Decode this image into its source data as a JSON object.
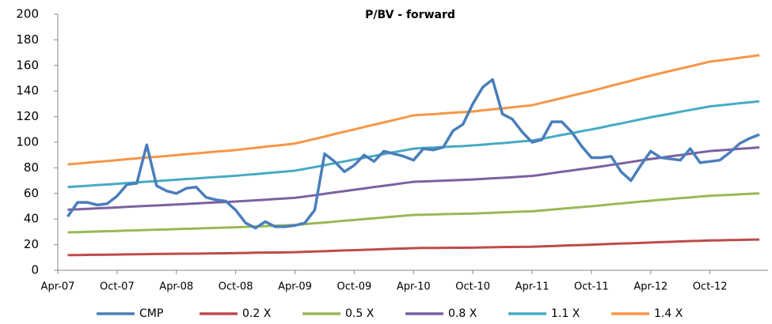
{
  "chart_data": {
    "type": "line",
    "title": "P/BV - forward",
    "categories": [
      "Apr-07",
      null,
      null,
      null,
      null,
      null,
      "Oct-07",
      null,
      null,
      null,
      null,
      null,
      "Apr-08",
      null,
      null,
      null,
      null,
      null,
      "Oct-08",
      null,
      null,
      null,
      null,
      null,
      "Apr-09",
      null,
      null,
      null,
      null,
      null,
      "Oct-09",
      null,
      null,
      null,
      null,
      null,
      "Apr-10",
      null,
      null,
      null,
      null,
      null,
      "Oct-10",
      null,
      null,
      null,
      null,
      null,
      "Apr-11",
      null,
      null,
      null,
      null,
      null,
      "Oct-11",
      null,
      null,
      null,
      null,
      null,
      "Apr-12",
      null,
      null,
      null,
      null,
      null,
      "Oct-12",
      null,
      null,
      null,
      null,
      null
    ],
    "ylim": [
      0,
      200
    ],
    "yticks": [
      0,
      20,
      40,
      60,
      80,
      100,
      120,
      140,
      160,
      180,
      200
    ],
    "grid": false,
    "legend": "bottom",
    "series": [
      {
        "name": "CMP",
        "color": "#4a7ebb",
        "values": [
          null,
          42,
          53,
          53,
          51,
          52,
          58,
          67,
          68,
          98,
          66,
          62,
          60,
          64,
          65,
          57,
          55,
          54,
          47,
          37,
          33,
          38,
          34,
          34,
          35,
          37,
          47,
          91,
          85,
          77,
          82,
          90,
          85,
          93,
          91,
          89,
          86,
          95,
          94,
          96,
          109,
          114,
          130,
          143,
          149,
          122,
          118,
          108,
          100,
          102,
          116,
          116,
          108,
          97,
          88,
          88,
          89,
          77,
          70,
          82,
          93,
          88,
          87,
          86,
          95,
          84,
          85,
          86,
          92,
          99,
          103,
          106
        ]
      },
      {
        "name": "0.2 X",
        "color": "#be4b48",
        "values": [
          null,
          11.8,
          11.9,
          12.0,
          12.1,
          12.2,
          12.3,
          12.4,
          12.5,
          12.6,
          12.7,
          12.8,
          12.9,
          13.0,
          13.0,
          13.1,
          13.2,
          13.3,
          13.4,
          13.5,
          13.7,
          13.8,
          13.9,
          14.0,
          14.1,
          14.4,
          14.7,
          14.9,
          15.2,
          15.5,
          15.7,
          16.0,
          16.2,
          16.5,
          16.8,
          17.0,
          17.3,
          17.4,
          17.4,
          17.5,
          17.6,
          17.6,
          17.7,
          17.8,
          18.0,
          18.1,
          18.2,
          18.3,
          18.4,
          18.7,
          18.9,
          19.2,
          19.5,
          19.7,
          20.0,
          20.3,
          20.6,
          20.9,
          21.1,
          21.4,
          21.7,
          22.0,
          22.2,
          22.5,
          22.8,
          23.0,
          23.3,
          23.4,
          23.6,
          23.7,
          23.9,
          24.0
        ]
      },
      {
        "name": "0.5 X",
        "color": "#98b954",
        "values": [
          null,
          29.6,
          29.8,
          30.0,
          30.3,
          30.5,
          30.7,
          31.0,
          31.2,
          31.5,
          31.7,
          31.9,
          32.2,
          32.4,
          32.6,
          32.9,
          33.1,
          33.3,
          33.6,
          33.9,
          34.2,
          34.5,
          34.8,
          35.1,
          35.4,
          36.0,
          36.7,
          37.3,
          38.0,
          38.7,
          39.3,
          40.0,
          40.6,
          41.3,
          41.9,
          42.6,
          43.2,
          43.4,
          43.6,
          43.8,
          44.0,
          44.1,
          44.3,
          44.6,
          44.9,
          45.2,
          45.5,
          45.8,
          46.1,
          46.7,
          47.4,
          48.1,
          48.7,
          49.4,
          50.0,
          50.7,
          51.5,
          52.2,
          52.9,
          53.6,
          54.3,
          55.0,
          55.6,
          56.3,
          56.9,
          57.6,
          58.2,
          58.6,
          58.9,
          59.3,
          59.7,
          60.0
        ]
      },
      {
        "name": "0.8 X",
        "color": "#7d60a0",
        "values": [
          null,
          47.3,
          47.6,
          48.0,
          48.4,
          48.7,
          49.1,
          49.5,
          49.9,
          50.3,
          50.6,
          51.0,
          51.4,
          51.8,
          52.2,
          52.6,
          53.0,
          53.3,
          53.7,
          54.2,
          54.6,
          55.1,
          55.6,
          56.1,
          56.6,
          57.6,
          58.6,
          59.7,
          60.8,
          61.8,
          62.9,
          63.9,
          65.0,
          66.0,
          67.0,
          68.1,
          69.1,
          69.4,
          69.7,
          70.0,
          70.3,
          70.6,
          70.9,
          71.4,
          71.8,
          72.2,
          72.7,
          73.2,
          73.7,
          74.7,
          75.8,
          76.9,
          77.9,
          79.0,
          80.0,
          81.1,
          82.3,
          83.4,
          84.6,
          85.8,
          86.9,
          87.9,
          89.0,
          90.0,
          91.0,
          92.1,
          93.1,
          93.7,
          94.2,
          94.9,
          95.4,
          96.0
        ]
      },
      {
        "name": "1.1 X",
        "color": "#46aac5",
        "values": [
          null,
          65.0,
          65.5,
          66.0,
          66.6,
          67.0,
          67.5,
          68.1,
          68.6,
          69.2,
          69.6,
          70.2,
          70.7,
          71.3,
          71.7,
          72.3,
          72.8,
          73.3,
          73.8,
          74.5,
          75.1,
          75.8,
          76.5,
          77.1,
          77.8,
          79.2,
          80.6,
          82.1,
          83.6,
          85.0,
          86.5,
          87.9,
          89.3,
          90.8,
          92.2,
          93.6,
          95.0,
          95.5,
          95.8,
          96.3,
          96.7,
          97.0,
          97.5,
          98.1,
          98.8,
          99.3,
          100.0,
          100.7,
          101.3,
          102.7,
          104.2,
          105.7,
          107.1,
          108.6,
          110.0,
          111.5,
          113.2,
          114.7,
          116.3,
          117.9,
          119.5,
          120.9,
          122.3,
          123.8,
          125.2,
          126.6,
          128.0,
          128.8,
          129.6,
          130.5,
          131.2,
          132.0
        ]
      },
      {
        "name": "1.4 X",
        "color": "#f79646",
        "values": [
          null,
          82.7,
          83.3,
          84.0,
          84.7,
          85.3,
          86.0,
          86.7,
          87.4,
          88.1,
          88.6,
          89.3,
          90.0,
          90.7,
          91.3,
          92.0,
          92.7,
          93.2,
          93.9,
          94.8,
          95.6,
          96.5,
          97.3,
          98.1,
          99.0,
          100.8,
          102.6,
          104.4,
          106.4,
          108.2,
          110.0,
          111.9,
          113.7,
          115.5,
          117.3,
          119.1,
          121.0,
          121.5,
          121.9,
          122.5,
          123.1,
          123.5,
          124.0,
          124.9,
          125.7,
          126.4,
          127.3,
          128.1,
          128.9,
          130.8,
          132.6,
          134.5,
          136.4,
          138.2,
          140.0,
          142.0,
          144.1,
          146.0,
          148.0,
          150.1,
          152.0,
          153.9,
          155.7,
          157.5,
          159.3,
          161.1,
          163.0,
          163.9,
          164.9,
          166.0,
          167.0,
          168.0
        ]
      }
    ]
  }
}
